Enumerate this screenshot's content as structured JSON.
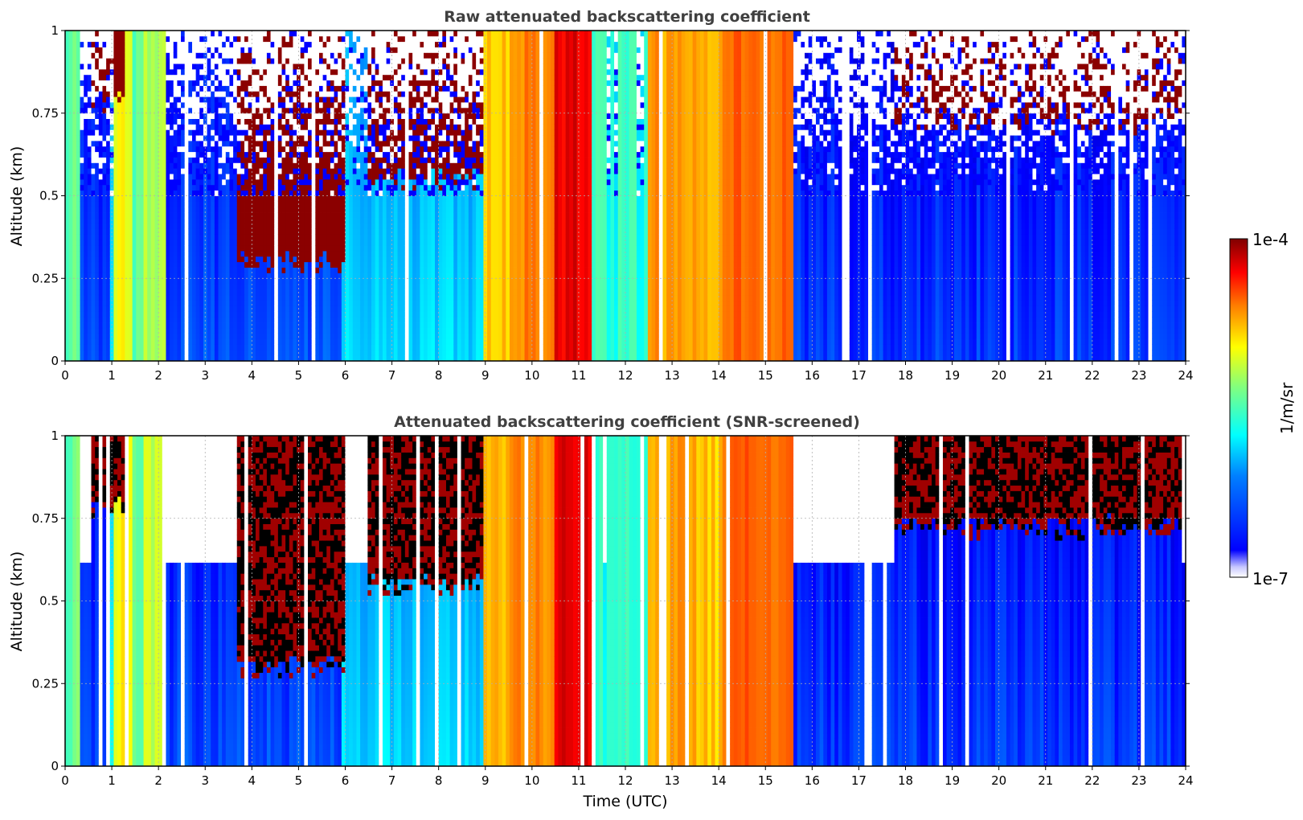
{
  "chart_data": [
    {
      "type": "heatmap",
      "title": "Raw attenuated backscattering coefficient",
      "xlabel": "",
      "ylabel": "Altitude (km)",
      "xlim": [
        0,
        24
      ],
      "ylim": [
        0,
        1
      ],
      "xticks": [
        "0",
        "1",
        "2",
        "3",
        "4",
        "5",
        "6",
        "7",
        "8",
        "9",
        "10",
        "11",
        "12",
        "13",
        "14",
        "15",
        "16",
        "17",
        "18",
        "19",
        "20",
        "21",
        "22",
        "23",
        "24"
      ],
      "yticks": [
        "0",
        "0.25",
        "0.5",
        "0.75",
        "1"
      ],
      "grid": true,
      "screened": false
    },
    {
      "type": "heatmap",
      "title": "Attenuated backscattering coefficient (SNR-screened)",
      "xlabel": "Time (UTC)",
      "ylabel": "Altitude (km)",
      "xlim": [
        0,
        24
      ],
      "ylim": [
        0,
        1
      ],
      "xticks": [
        "0",
        "1",
        "2",
        "3",
        "4",
        "5",
        "6",
        "7",
        "8",
        "9",
        "10",
        "11",
        "12",
        "13",
        "14",
        "15",
        "16",
        "17",
        "18",
        "19",
        "20",
        "21",
        "22",
        "23",
        "24"
      ],
      "yticks": [
        "0",
        "0.25",
        "0.5",
        "0.75",
        "1"
      ],
      "grid": true,
      "screened": true
    }
  ],
  "colorbar": {
    "label": "1/m/sr",
    "max_label": "1e-4",
    "min_label": "1e-7",
    "scale": "log",
    "range": [
      1e-07,
      0.0001
    ],
    "colormap": "jet",
    "under_color": "#ffffff",
    "screened_high_color": "#000000"
  },
  "signal_profile": {
    "description_hours": [
      {
        "from": 0.0,
        "to": 0.35,
        "level": 0.48
      },
      {
        "from": 0.35,
        "to": 0.95,
        "level": 0.2
      },
      {
        "from": 0.95,
        "to": 1.05,
        "level": 0.38
      },
      {
        "from": 1.05,
        "to": 1.45,
        "level": 0.62
      },
      {
        "from": 1.45,
        "to": 1.7,
        "level": 0.46
      },
      {
        "from": 1.7,
        "to": 2.15,
        "level": 0.56
      },
      {
        "from": 2.15,
        "to": 5.9,
        "level": 0.2
      },
      {
        "from": 5.9,
        "to": 9.0,
        "level": 0.34
      },
      {
        "from": 9.0,
        "to": 9.5,
        "level": 0.68
      },
      {
        "from": 9.5,
        "to": 10.5,
        "level": 0.74
      },
      {
        "from": 10.5,
        "to": 11.3,
        "level": 0.9
      },
      {
        "from": 11.3,
        "to": 12.5,
        "level": 0.42
      },
      {
        "from": 12.5,
        "to": 13.5,
        "level": 0.72
      },
      {
        "from": 13.5,
        "to": 14.1,
        "level": 0.68
      },
      {
        "from": 14.1,
        "to": 15.6,
        "level": 0.78
      },
      {
        "from": 15.6,
        "to": 24.0,
        "level": 0.18
      }
    ],
    "cloud_layers_km": [
      {
        "from": 0.6,
        "to": 1.3,
        "base": 0.78
      },
      {
        "from": 3.7,
        "to": 6.0,
        "base": 0.3
      },
      {
        "from": 6.5,
        "to": 9.0,
        "base": 0.55
      },
      {
        "from": 17.8,
        "to": 23.9,
        "base": 0.72
      }
    ]
  }
}
